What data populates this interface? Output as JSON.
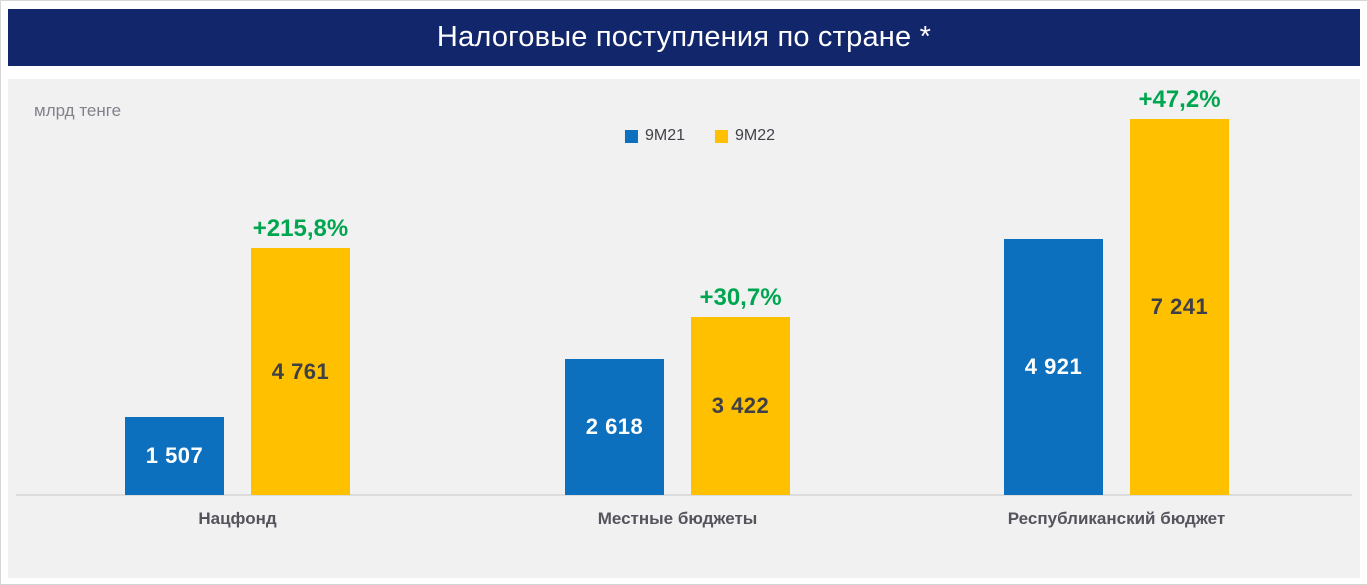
{
  "header": {
    "title": "Налоговые поступления по стране *"
  },
  "unit_label": "млрд тенге",
  "chart_data": {
    "type": "bar",
    "title": "Налоговые поступления по стране *",
    "ylabel": "млрд тенге",
    "ylim": [
      0,
      7400
    ],
    "grid": false,
    "legend_position": "top-center",
    "legend": [
      {
        "name": "9M21",
        "color": "#0C70BE"
      },
      {
        "name": "9M22",
        "color": "#FFC000"
      }
    ],
    "categories": [
      "Нацфонд",
      "Местные бюджеты",
      "Республиканский бюджет"
    ],
    "groups": [
      {
        "category": "Нацфонд",
        "change_pct": "+215,8%",
        "series": [
          {
            "name": "9M21",
            "value": 1507,
            "label": "1 507"
          },
          {
            "name": "9M22",
            "value": 4761,
            "label": "4 761"
          }
        ]
      },
      {
        "category": "Местные бюджеты",
        "change_pct": "+30,7%",
        "series": [
          {
            "name": "9M21",
            "value": 2618,
            "label": "2 618"
          },
          {
            "name": "9M22",
            "value": 3422,
            "label": "3 422"
          }
        ]
      },
      {
        "category": "Республиканский бюджет",
        "change_pct": "+47,2%",
        "series": [
          {
            "name": "9M21",
            "value": 4921,
            "label": "4 921"
          },
          {
            "name": "9M22",
            "value": 7241,
            "label": "7 241"
          }
        ]
      }
    ],
    "colors": {
      "series_9m21_blue": "#0C70BE",
      "series_9m22_yellow": "#FFC000",
      "growth_green": "#00A64F",
      "header_navy": "#12266B",
      "chart_background": "#F1F1F2"
    }
  }
}
